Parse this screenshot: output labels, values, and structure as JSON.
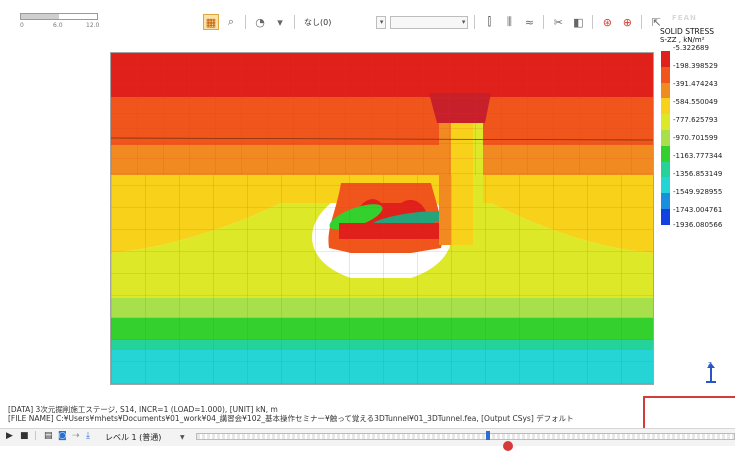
{
  "scale_bar": {
    "ticks": [
      "0",
      "6.0",
      "12.0"
    ]
  },
  "toolbar": {
    "hidden_label": "なし(0)",
    "icons": [
      "display-mode-icon",
      "zoom-icon",
      "shade-icon",
      "dropdown-icon",
      "mesh-icon",
      "grid-icon",
      "contour-icon",
      "tool-icon",
      "view-icon",
      "record-icon",
      "settings-icon",
      "export-icon"
    ]
  },
  "brand": "FEAN",
  "legend": {
    "title": "SOLID STRESS",
    "subtitle": "S-ZZ , kN/m²",
    "colors": [
      "#e0201b",
      "#f0561c",
      "#f28a22",
      "#f7d11a",
      "#dde829",
      "#a8e04c",
      "#34d12e",
      "#25d39a",
      "#25d4d4",
      "#198fe0",
      "#1340e0"
    ],
    "values": [
      "-5.322689",
      "-198.398529",
      "-391.474243",
      "-584.550049",
      "-777.625793",
      "-970.701599",
      "-1163.777344",
      "-1356.853149",
      "-1549.928955",
      "-1743.004761",
      "-1936.080566"
    ]
  },
  "info": {
    "line1": "[DATA] 3次元掘削施工ステージ, S14, INCR=1 (LOAD=1.000), [UNIT] kN, m",
    "line2": "[FILE NAME] C:¥Users¥mhets¥Documents¥01_work¥04_講習会¥102_基本操作セミナー¥触って覚える3DTunnel¥01_3DTunnel.fea, [Output CSys] デフォルト"
  },
  "triad": {
    "axis": "z"
  },
  "bottom_bar": {
    "level_label": "レベル 1 (普通)",
    "icons": [
      "play-icon",
      "stop-icon",
      "chart-icon",
      "camera-icon",
      "arrow-icon",
      "download-icon"
    ]
  }
}
